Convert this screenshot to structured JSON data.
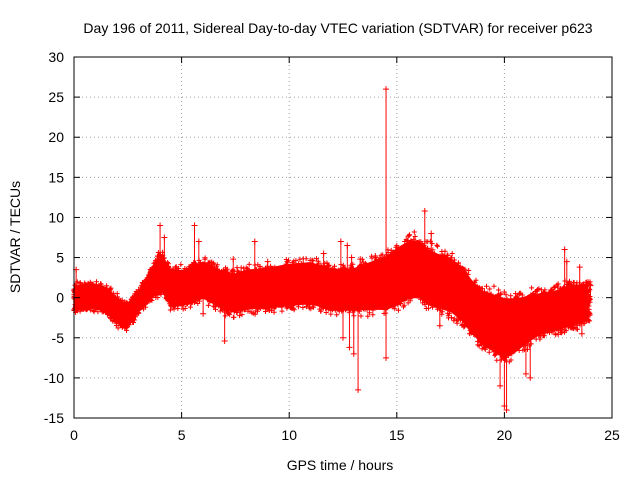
{
  "chart_data": {
    "type": "scatter",
    "title": "Day 196 of 2011, Sidereal Day-to-day VTEC variation (SDTVAR) for receiver p623",
    "xlabel": "GPS time / hours",
    "ylabel": "SDTVAR / TECUs",
    "xlim": [
      0,
      25
    ],
    "ylim": [
      -15,
      30
    ],
    "x_ticks": [
      0,
      5,
      10,
      15,
      20,
      25
    ],
    "y_ticks": [
      -15,
      -10,
      -5,
      0,
      5,
      10,
      15,
      20,
      25,
      30
    ],
    "grid": true,
    "marker": "+",
    "colors": {
      "series": "#ff0000",
      "grid": "#a0a0a0",
      "axis": "#000000"
    },
    "series": [
      {
        "name": "SDTVAR",
        "band_centerline": [
          [
            0.0,
            0.0
          ],
          [
            0.5,
            0.1
          ],
          [
            1.0,
            0.2
          ],
          [
            1.5,
            -0.3
          ],
          [
            2.0,
            -1.6
          ],
          [
            2.4,
            -2.4
          ],
          [
            2.8,
            -1.2
          ],
          [
            3.2,
            0.2
          ],
          [
            3.5,
            1.5
          ],
          [
            3.8,
            2.5
          ],
          [
            4.1,
            3.0
          ],
          [
            4.5,
            1.2
          ],
          [
            5.0,
            1.2
          ],
          [
            5.5,
            1.6
          ],
          [
            6.0,
            2.2
          ],
          [
            6.5,
            1.5
          ],
          [
            7.0,
            0.8
          ],
          [
            7.5,
            0.6
          ],
          [
            8.0,
            1.0
          ],
          [
            9.0,
            1.2
          ],
          [
            10.0,
            1.6
          ],
          [
            11.0,
            1.8
          ],
          [
            12.0,
            1.0
          ],
          [
            13.0,
            1.0
          ],
          [
            14.0,
            1.6
          ],
          [
            14.5,
            1.8
          ],
          [
            15.0,
            2.6
          ],
          [
            15.5,
            3.4
          ],
          [
            16.0,
            3.6
          ],
          [
            16.5,
            2.5
          ],
          [
            17.0,
            2.0
          ],
          [
            17.5,
            1.6
          ],
          [
            18.0,
            0.5
          ],
          [
            18.5,
            -1.2
          ],
          [
            19.0,
            -2.5
          ],
          [
            19.5,
            -3.2
          ],
          [
            20.0,
            -3.8
          ],
          [
            20.5,
            -3.5
          ],
          [
            21.0,
            -2.8
          ],
          [
            21.5,
            -2.2
          ],
          [
            22.0,
            -1.8
          ],
          [
            22.5,
            -1.5
          ],
          [
            23.0,
            -1.0
          ],
          [
            23.5,
            -0.8
          ],
          [
            24.0,
            -0.6
          ]
        ],
        "band_halfwidth": [
          [
            0.0,
            2.0
          ],
          [
            2.0,
            2.2
          ],
          [
            3.0,
            1.8
          ],
          [
            4.0,
            3.2
          ],
          [
            5.0,
            3.0
          ],
          [
            7.0,
            3.2
          ],
          [
            10.0,
            3.5
          ],
          [
            13.0,
            3.5
          ],
          [
            15.0,
            4.8
          ],
          [
            16.0,
            4.8
          ],
          [
            17.0,
            4.5
          ],
          [
            18.0,
            4.5
          ],
          [
            19.0,
            4.5
          ],
          [
            20.0,
            5.0
          ],
          [
            21.0,
            4.0
          ],
          [
            22.0,
            3.2
          ],
          [
            23.0,
            3.5
          ],
          [
            24.0,
            3.0
          ]
        ],
        "spikes": [
          [
            0.1,
            3.5
          ],
          [
            0.1,
            -1.5
          ],
          [
            4.0,
            9.0
          ],
          [
            4.2,
            7.5
          ],
          [
            5.6,
            9.0
          ],
          [
            5.8,
            7.0
          ],
          [
            6.0,
            -2.0
          ],
          [
            7.0,
            -5.4
          ],
          [
            7.4,
            4.8
          ],
          [
            8.4,
            7.0
          ],
          [
            9.0,
            4.5
          ],
          [
            11.6,
            5.5
          ],
          [
            12.4,
            7.0
          ],
          [
            12.5,
            -5.0
          ],
          [
            12.7,
            6.5
          ],
          [
            12.8,
            -6.2
          ],
          [
            12.9,
            5.0
          ],
          [
            13.3,
            4.8
          ],
          [
            13.0,
            -7.0
          ],
          [
            13.2,
            -11.5
          ],
          [
            14.5,
            26.0
          ],
          [
            14.5,
            -7.5
          ],
          [
            14.0,
            5.2
          ],
          [
            16.3,
            10.8
          ],
          [
            16.6,
            8.0
          ],
          [
            17.0,
            -3.5
          ],
          [
            19.8,
            -11.0
          ],
          [
            20.0,
            -13.5
          ],
          [
            20.1,
            -14.0
          ],
          [
            21.0,
            -9.5
          ],
          [
            21.2,
            -10.0
          ],
          [
            22.2,
            -1.5
          ],
          [
            22.8,
            6.0
          ],
          [
            22.9,
            4.5
          ],
          [
            23.5,
            3.8
          ],
          [
            23.6,
            -4.5
          ],
          [
            24.0,
            1.5
          ]
        ]
      }
    ]
  }
}
